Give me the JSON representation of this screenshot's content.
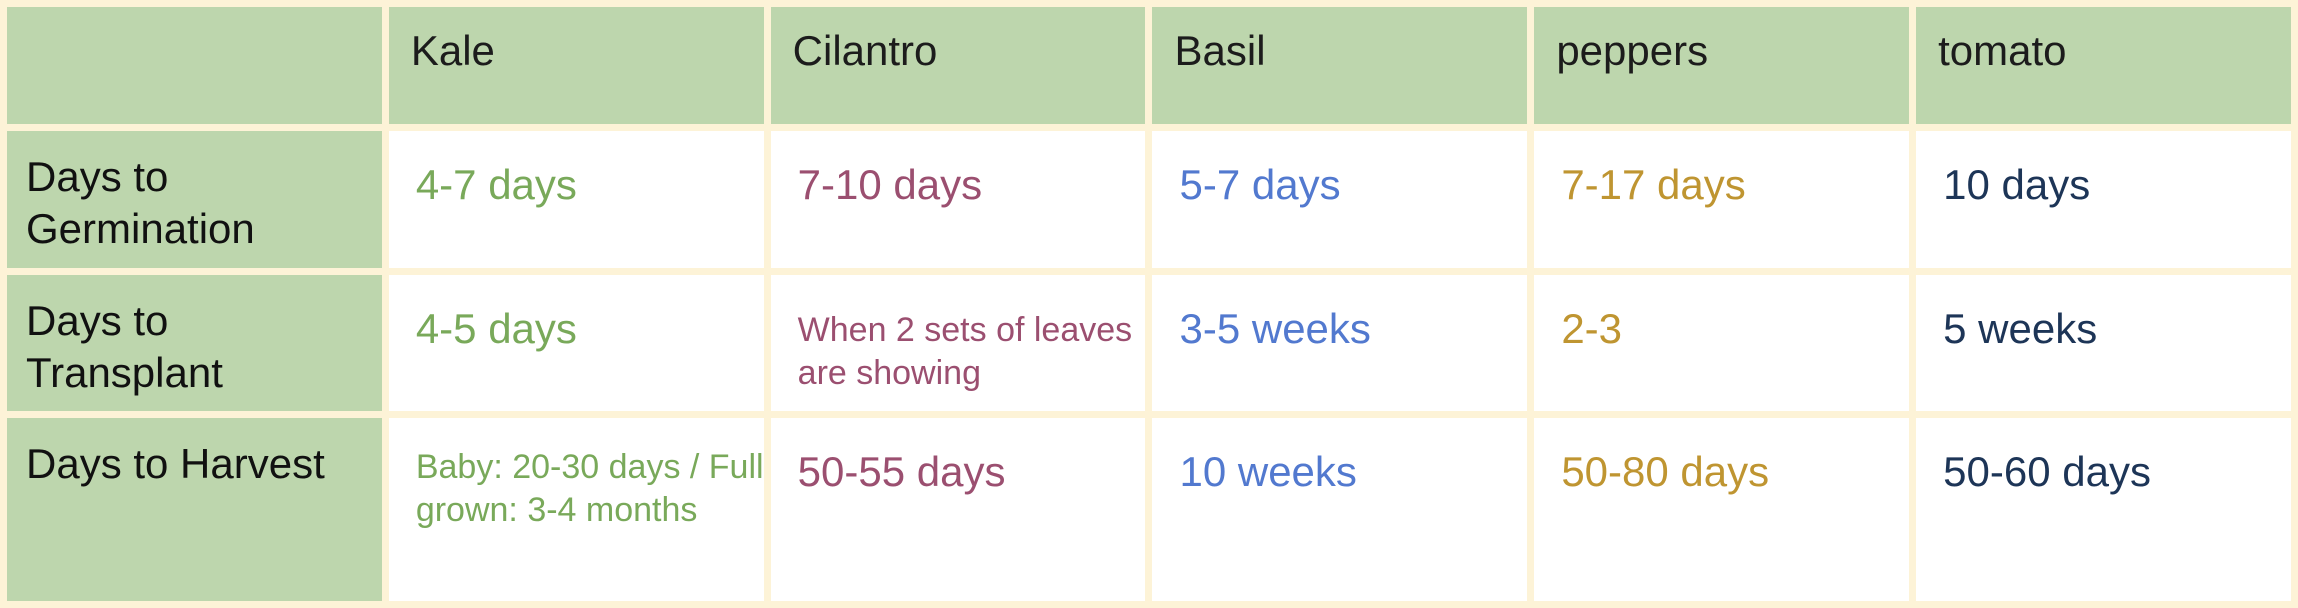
{
  "columns": [
    "Kale",
    "Cilantro",
    "Basil",
    "peppers",
    "tomato"
  ],
  "rows": [
    {
      "label": "Days to Germination",
      "label_line1": "Days to",
      "label_line2": "Germination",
      "values": [
        "4-7 days",
        "7-10 days",
        "5-7 days",
        "7-17 days",
        "10 days"
      ]
    },
    {
      "label": "Days to Transplant",
      "label_line1": "Days to",
      "label_line2": "Transplant",
      "values": [
        "4-5 days",
        "When 2 sets of leaves are showing",
        "3-5 weeks",
        "2-3",
        "5 weeks"
      ]
    },
    {
      "label": "Days to Harvest",
      "label_line1": "Days to Harvest",
      "label_line2": "",
      "values": [
        "Baby: 20-30 days / Full grown: 3-4 months",
        "50-55 days",
        "10 weeks",
        "50-80 days",
        "50-60 days"
      ]
    }
  ],
  "colors": {
    "header_bg": "#bdd6ad",
    "grid_bg": "#fdf3d7",
    "kale": "#79a95a",
    "cilantro": "#9b4f70",
    "basil": "#5279cf",
    "peppers": "#bf9531",
    "tomato": "#1d3557"
  }
}
